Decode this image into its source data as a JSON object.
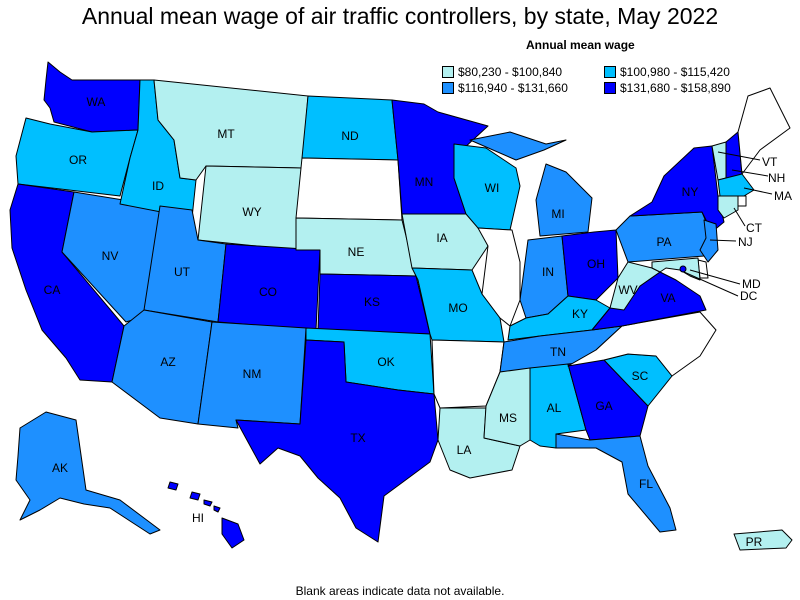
{
  "title": "Annual mean wage of air traffic controllers, by state, May 2022",
  "legend": {
    "title": "Annual mean wage",
    "items": [
      {
        "label": "$80,230 - $100,840",
        "color": "#b3f0f0"
      },
      {
        "label": "$100,980 - $115,420",
        "color": "#00bfff"
      },
      {
        "label": "$116,940 - $131,660",
        "color": "#1e90ff"
      },
      {
        "label": "$131,680 - $158,890",
        "color": "#0000ff"
      }
    ]
  },
  "footnote": "Blank areas indicate data not available.",
  "states": {
    "WA": 4,
    "OR": 2,
    "CA": 4,
    "NV": 3,
    "ID": 2,
    "MT": 1,
    "WY": 1,
    "UT": 3,
    "AZ": 3,
    "CO": 4,
    "NM": 3,
    "ND": 2,
    "SD": 0,
    "NE": 1,
    "KS": 4,
    "OK": 2,
    "TX": 4,
    "MN": 4,
    "IA": 1,
    "MO": 2,
    "AR": 0,
    "LA": 1,
    "WI": 2,
    "IL": 0,
    "MI": 3,
    "IN": 3,
    "OH": 4,
    "KY": 2,
    "TN": 3,
    "MS": 1,
    "AL": 2,
    "GA": 4,
    "FL": 3,
    "SC": 2,
    "NC": 0,
    "VA": 4,
    "WV": 1,
    "PA": 3,
    "NY": 4,
    "VT": 1,
    "NH": 4,
    "ME": 0,
    "MA": 2,
    "CT": 1,
    "NJ": 3,
    "MD": 1,
    "DC": 4,
    "DE": 0,
    "RI": 0,
    "AK": 3,
    "HI": 4,
    "PR": 1
  },
  "labels": {
    "WA": "WA",
    "OR": "OR",
    "CA": "CA",
    "NV": "NV",
    "ID": "ID",
    "MT": "MT",
    "WY": "WY",
    "UT": "UT",
    "AZ": "AZ",
    "CO": "CO",
    "NM": "NM",
    "ND": "ND",
    "NE": "NE",
    "KS": "KS",
    "OK": "OK",
    "TX": "TX",
    "MN": "MN",
    "IA": "IA",
    "MO": "MO",
    "LA": "LA",
    "WI": "WI",
    "MI": "MI",
    "IN": "IN",
    "OH": "OH",
    "KY": "KY",
    "TN": "TN",
    "MS": "MS",
    "AL": "AL",
    "GA": "GA",
    "FL": "FL",
    "SC": "SC",
    "VA": "VA",
    "WV": "WV",
    "PA": "PA",
    "NY": "NY",
    "VT": "VT",
    "NH": "NH",
    "MA": "MA",
    "CT": "CT",
    "NJ": "NJ",
    "MD": "MD",
    "DC": "DC",
    "AK": "AK",
    "HI": "HI",
    "PR": "PR"
  },
  "blank_color": "#ffffff"
}
